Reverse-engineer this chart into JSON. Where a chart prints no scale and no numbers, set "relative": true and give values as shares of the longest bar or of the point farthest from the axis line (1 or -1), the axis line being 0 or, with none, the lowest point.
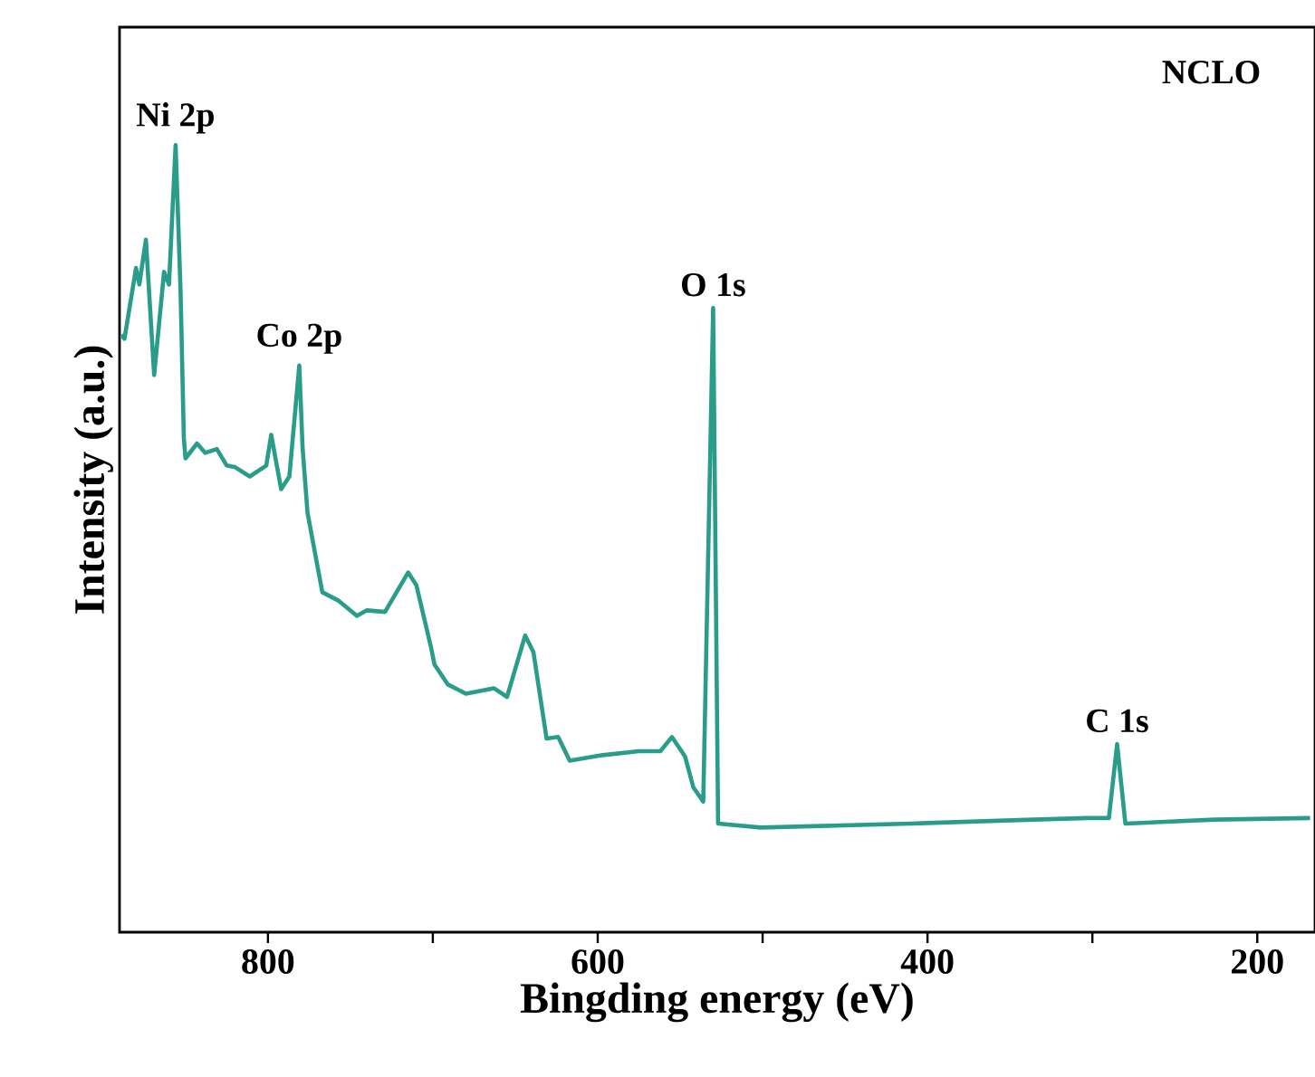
{
  "chart_data": {
    "type": "line",
    "xlabel": "Bingding energy (eV)",
    "ylabel": "Intensity (a.u.)",
    "relative": true,
    "xlim": [
      890,
      165
    ],
    "xticks": [
      800,
      {
        "value": 700,
        "label": null
      },
      600,
      {
        "value": 500,
        "label": null
      },
      400,
      {
        "value": 300,
        "label": null
      },
      200
    ],
    "x": [
      889,
      887,
      880,
      878,
      874,
      869,
      863,
      860,
      856,
      853,
      851,
      850,
      843,
      838,
      831,
      825,
      820,
      811,
      801,
      798,
      792,
      787,
      781,
      779,
      776,
      767,
      757,
      746,
      740,
      729,
      715,
      710,
      701,
      699,
      691,
      680,
      663,
      655,
      644,
      639,
      631,
      624,
      617,
      597,
      575,
      562,
      555,
      547,
      542,
      536,
      530,
      527,
      501,
      410,
      336,
      303,
      290,
      285,
      280,
      226,
      168
    ],
    "series": [
      {
        "color": "#2a9d8a",
        "values": [
          0.759,
          0.754,
          0.844,
          0.823,
          0.88,
          0.708,
          0.839,
          0.823,
          1.0,
          0.816,
          0.628,
          0.602,
          0.621,
          0.609,
          0.614,
          0.593,
          0.591,
          0.579,
          0.593,
          0.632,
          0.563,
          0.579,
          0.72,
          0.616,
          0.533,
          0.432,
          0.421,
          0.402,
          0.409,
          0.407,
          0.457,
          0.441,
          0.361,
          0.34,
          0.315,
          0.303,
          0.31,
          0.299,
          0.377,
          0.356,
          0.246,
          0.248,
          0.218,
          0.225,
          0.23,
          0.23,
          0.248,
          0.223,
          0.184,
          0.166,
          0.793,
          0.138,
          0.133,
          0.138,
          0.143,
          0.145,
          0.145,
          0.239,
          0.138,
          0.143,
          0.145
        ]
      }
    ],
    "annotations": [
      {
        "text": "Ni 2p",
        "x": 856,
        "y": 1.0
      },
      {
        "text": "Co 2p",
        "x": 781,
        "y": 0.72
      },
      {
        "text": "O 1s",
        "x": 530,
        "y": 0.793
      },
      {
        "text": "C 1s",
        "x": 285,
        "y": 0.239
      },
      "NCLO"
    ]
  }
}
